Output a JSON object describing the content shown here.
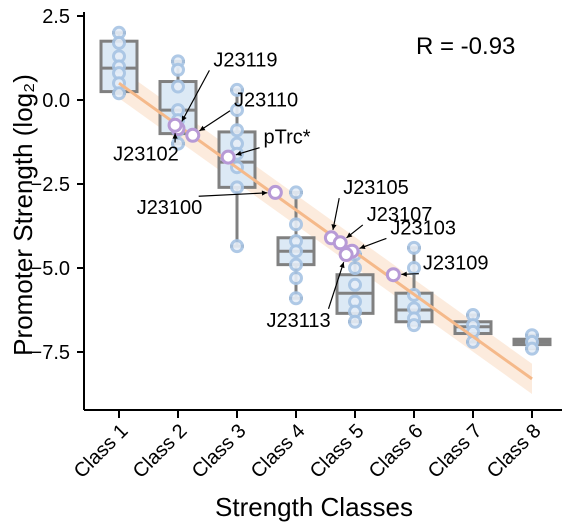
{
  "chart_data": {
    "type": "box",
    "xlabel": "Strength Classes",
    "ylabel": "Promoter Strength (log₂)",
    "categories": [
      "Class 1",
      "Class 2",
      "Class 3",
      "Class 4",
      "Class 5",
      "Class 6",
      "Class 7",
      "Class 8"
    ],
    "yticks": [
      2.5,
      0.0,
      -2.5,
      -5.0,
      -7.5
    ],
    "ytick_labels": [
      "2.5",
      "0.0",
      "−2.5",
      "−5.0",
      "−7.5"
    ],
    "ylim": [
      -9.3,
      2.6
    ],
    "annotation": "R = -0.93",
    "colors": {
      "box_fill": "#dce9f5",
      "box_edge": "#808080",
      "points": "#a7c4e4",
      "highlight": "#b79ad6",
      "trend": "#f5b98a",
      "band": "#fbe3cf"
    },
    "boxes": [
      {
        "q1": 0.25,
        "median": 0.95,
        "q3": 1.75,
        "min": 0.2,
        "max": 2.0
      },
      {
        "q1": -1.0,
        "median": -0.3,
        "q3": 0.55,
        "min": -1.3,
        "max": 1.15
      },
      {
        "q1": -2.6,
        "median": -1.85,
        "q3": -0.95,
        "min": -4.35,
        "max": 0.3
      },
      {
        "q1": -4.9,
        "median": -4.5,
        "q3": -4.1,
        "min": -5.9,
        "max": -2.75
      },
      {
        "q1": -6.35,
        "median": -5.75,
        "q3": -5.2,
        "min": -6.6,
        "max": -4.6
      },
      {
        "q1": -6.6,
        "median": -6.25,
        "q3": -5.75,
        "min": -6.7,
        "max": -4.4
      },
      {
        "q1": -6.95,
        "median": -6.75,
        "q3": -6.6,
        "min": -7.2,
        "max": -6.4
      },
      {
        "q1": -7.28,
        "median": -7.2,
        "q3": -7.12,
        "min": -7.4,
        "max": -7.0
      }
    ],
    "points": [
      [
        {
          "y": 2.0
        },
        {
          "y": 1.7
        },
        {
          "y": 1.3
        },
        {
          "y": 1.0
        },
        {
          "y": 0.8
        },
        {
          "y": 0.5
        },
        {
          "y": 0.2
        }
      ],
      [
        {
          "y": 1.15
        },
        {
          "y": 0.9
        },
        {
          "y": 0.4
        },
        {
          "y": -0.3
        },
        {
          "y": -0.6
        },
        {
          "y": -0.9
        },
        {
          "y": -1.3
        }
      ],
      [
        {
          "y": 0.3
        },
        {
          "y": -0.3
        },
        {
          "y": -0.9
        },
        {
          "y": -1.3
        },
        {
          "y": -1.6
        },
        {
          "y": -2.0
        },
        {
          "y": -2.6
        },
        {
          "y": -4.35
        }
      ],
      [
        {
          "y": -2.75
        },
        {
          "y": -3.7
        },
        {
          "y": -4.2
        },
        {
          "y": -4.5
        },
        {
          "y": -4.9
        },
        {
          "y": -5.3
        },
        {
          "y": -5.9
        }
      ],
      [
        {
          "y": -4.6
        },
        {
          "y": -5.0
        },
        {
          "y": -5.5
        },
        {
          "y": -6.0
        },
        {
          "y": -6.3
        },
        {
          "y": -6.6
        }
      ],
      [
        {
          "y": -4.4
        },
        {
          "y": -5.0
        },
        {
          "y": -5.8
        },
        {
          "y": -6.2
        },
        {
          "y": -6.5
        },
        {
          "y": -6.7
        }
      ],
      [
        {
          "y": -6.4
        },
        {
          "y": -6.7
        },
        {
          "y": -6.9
        },
        {
          "y": -7.2
        }
      ],
      [
        {
          "y": -7.0
        },
        {
          "y": -7.2
        },
        {
          "y": -7.4
        }
      ]
    ],
    "trend": {
      "x0": 1,
      "y0": 0.5,
      "x1": 8,
      "y1": -8.3,
      "band_halfwidth": 0.45
    },
    "highlighted": [
      {
        "name": "J23119",
        "x": 2.0,
        "y": -0.85,
        "lx": 2.6,
        "ly": 1.0
      },
      {
        "name": "J23110",
        "x": 2.25,
        "y": -1.05,
        "lx": 2.95,
        "ly": -0.2
      },
      {
        "name": "J23102",
        "x": 1.95,
        "y": -0.75,
        "lx": 0.9,
        "ly": -1.8
      },
      {
        "name": "pTrc*",
        "x": 2.85,
        "y": -1.7,
        "lx": 3.45,
        "ly": -1.3
      },
      {
        "name": "J23100",
        "x": 3.65,
        "y": -2.75,
        "lx": 1.3,
        "ly": -3.4
      },
      {
        "name": "J23105",
        "x": 4.6,
        "y": -4.1,
        "lx": 4.8,
        "ly": -2.8
      },
      {
        "name": "J23107",
        "x": 4.75,
        "y": -4.25,
        "lx": 5.2,
        "ly": -3.6
      },
      {
        "name": "J23103",
        "x": 4.95,
        "y": -4.5,
        "lx": 5.6,
        "ly": -4.0
      },
      {
        "name": "J23109",
        "x": 5.65,
        "y": -5.2,
        "lx": 6.15,
        "ly": -5.05
      },
      {
        "name": "J23113",
        "x": 4.85,
        "y": -4.6,
        "lx": 3.5,
        "ly": -6.75
      }
    ]
  }
}
